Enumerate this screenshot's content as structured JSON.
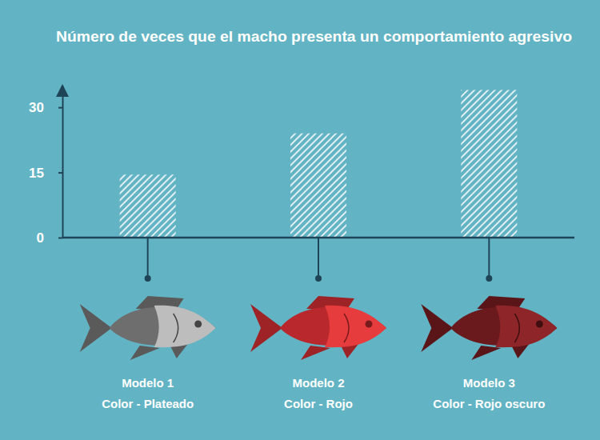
{
  "chart_data": {
    "type": "bar",
    "title": "Número de veces que el macho presenta un comportamiento agresivo",
    "categories": [
      "Modelo 1\nColor - Plateado",
      "Modelo 2\nColor - Rojo",
      "Modelo 3\nColor - Rojo oscuro"
    ],
    "values": [
      14.5,
      24,
      34
    ],
    "color": "#ffffff",
    "ylim": [
      0,
      35
    ],
    "yticks": [
      0,
      15,
      30
    ],
    "grid": false
  }
}
